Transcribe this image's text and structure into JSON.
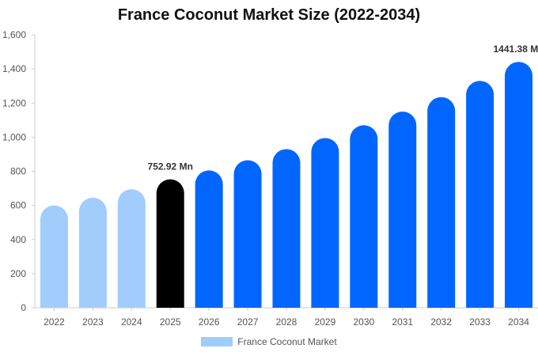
{
  "chart_data": {
    "type": "bar",
    "title": "France Coconut Market Size (2022-2034)",
    "categories": [
      "2022",
      "2023",
      "2024",
      "2025",
      "2026",
      "2027",
      "2028",
      "2029",
      "2030",
      "2031",
      "2032",
      "2033",
      "2034"
    ],
    "series": [
      {
        "name": "France Coconut Market",
        "values": [
          600,
          645,
          695,
          752.92,
          805,
          865,
          930,
          995,
          1070,
          1150,
          1235,
          1330,
          1441.38
        ]
      }
    ],
    "yticks": [
      "0",
      "200",
      "400",
      "600",
      "800",
      "1,000",
      "1,200",
      "1,400",
      "1,600"
    ],
    "ylim": [
      0,
      1600
    ],
    "grid": false,
    "legend_position": "bottom",
    "data_labels": [
      {
        "category": "2025",
        "text": "752.92 Mn"
      },
      {
        "category": "2034",
        "text": "1441.38 Mn"
      }
    ],
    "colors": {
      "historical": "#a0cdfc",
      "current": "#000000",
      "forecast": "#0066ff",
      "legend": "#a0cdfc",
      "axis": "#cccccc"
    },
    "highlight_category": "2025"
  }
}
